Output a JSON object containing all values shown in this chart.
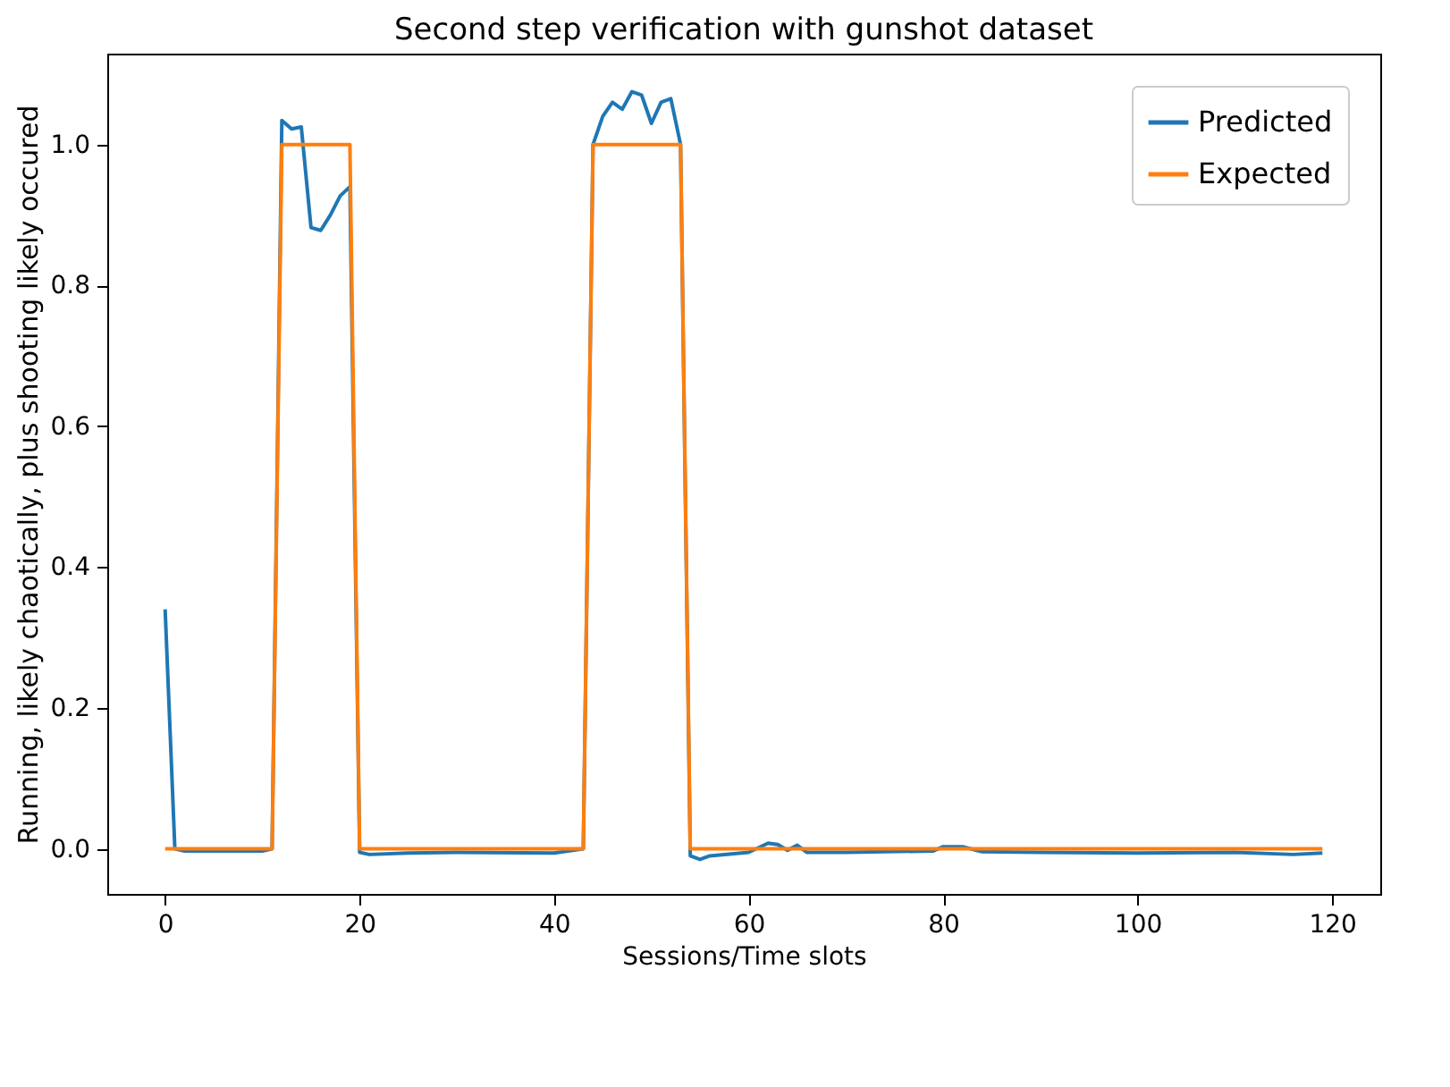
{
  "chart_data": {
    "type": "line",
    "title": "Second step verification with gunshot dataset",
    "xlabel": "Sessions/Time slots",
    "ylabel": "Running, likely chaotically, plus shooting likely occured",
    "series": [
      {
        "name": "Predicted",
        "color": "#1f77b4",
        "x": [
          0,
          1,
          2,
          10,
          11,
          12,
          13,
          14,
          15,
          16,
          17,
          18,
          19,
          20,
          21,
          25,
          30,
          40,
          43,
          44,
          45,
          46,
          47,
          48,
          49,
          50,
          51,
          52,
          53,
          54,
          55,
          56,
          60,
          62,
          63,
          64,
          65,
          66,
          70,
          79,
          80,
          82,
          84,
          90,
          100,
          110,
          116,
          119
        ],
        "values": [
          0.34,
          0,
          -0.003,
          -0.003,
          0,
          1.034,
          1.022,
          1.025,
          0.882,
          0.878,
          0.9,
          0.927,
          0.94,
          -0.005,
          -0.008,
          -0.006,
          -0.005,
          -0.006,
          0,
          1.0,
          1.04,
          1.06,
          1.05,
          1.075,
          1.07,
          1.03,
          1.06,
          1.065,
          1.0,
          -0.01,
          -0.015,
          -0.01,
          -0.005,
          0.008,
          0.006,
          -0.002,
          0.005,
          -0.005,
          -0.005,
          -0.003,
          0.003,
          0.003,
          -0.004,
          -0.005,
          -0.006,
          -0.005,
          -0.008,
          -0.006
        ]
      },
      {
        "name": "Expected",
        "color": "#ff7f0e",
        "x": [
          0,
          11,
          12,
          19,
          20,
          43,
          44,
          53,
          54,
          119
        ],
        "values": [
          0,
          0,
          1,
          1,
          0,
          0,
          1,
          1,
          0,
          0
        ]
      }
    ],
    "xlim": [
      -5.95,
      124.95
    ],
    "xticks": [
      0,
      20,
      40,
      60,
      80,
      100,
      120
    ],
    "ylim": [
      -0.064,
      1.129
    ],
    "yticks": [
      {
        "value": 0,
        "label": "0.0"
      },
      {
        "value": 0.2,
        "label": "0.2"
      },
      {
        "value": 0.4,
        "label": "0.4"
      },
      {
        "value": 0.6,
        "label": "0.6"
      },
      {
        "value": 0.8,
        "label": "0.8"
      },
      {
        "value": 1,
        "label": "1.0"
      }
    ],
    "legend": "top right",
    "grid": false
  }
}
